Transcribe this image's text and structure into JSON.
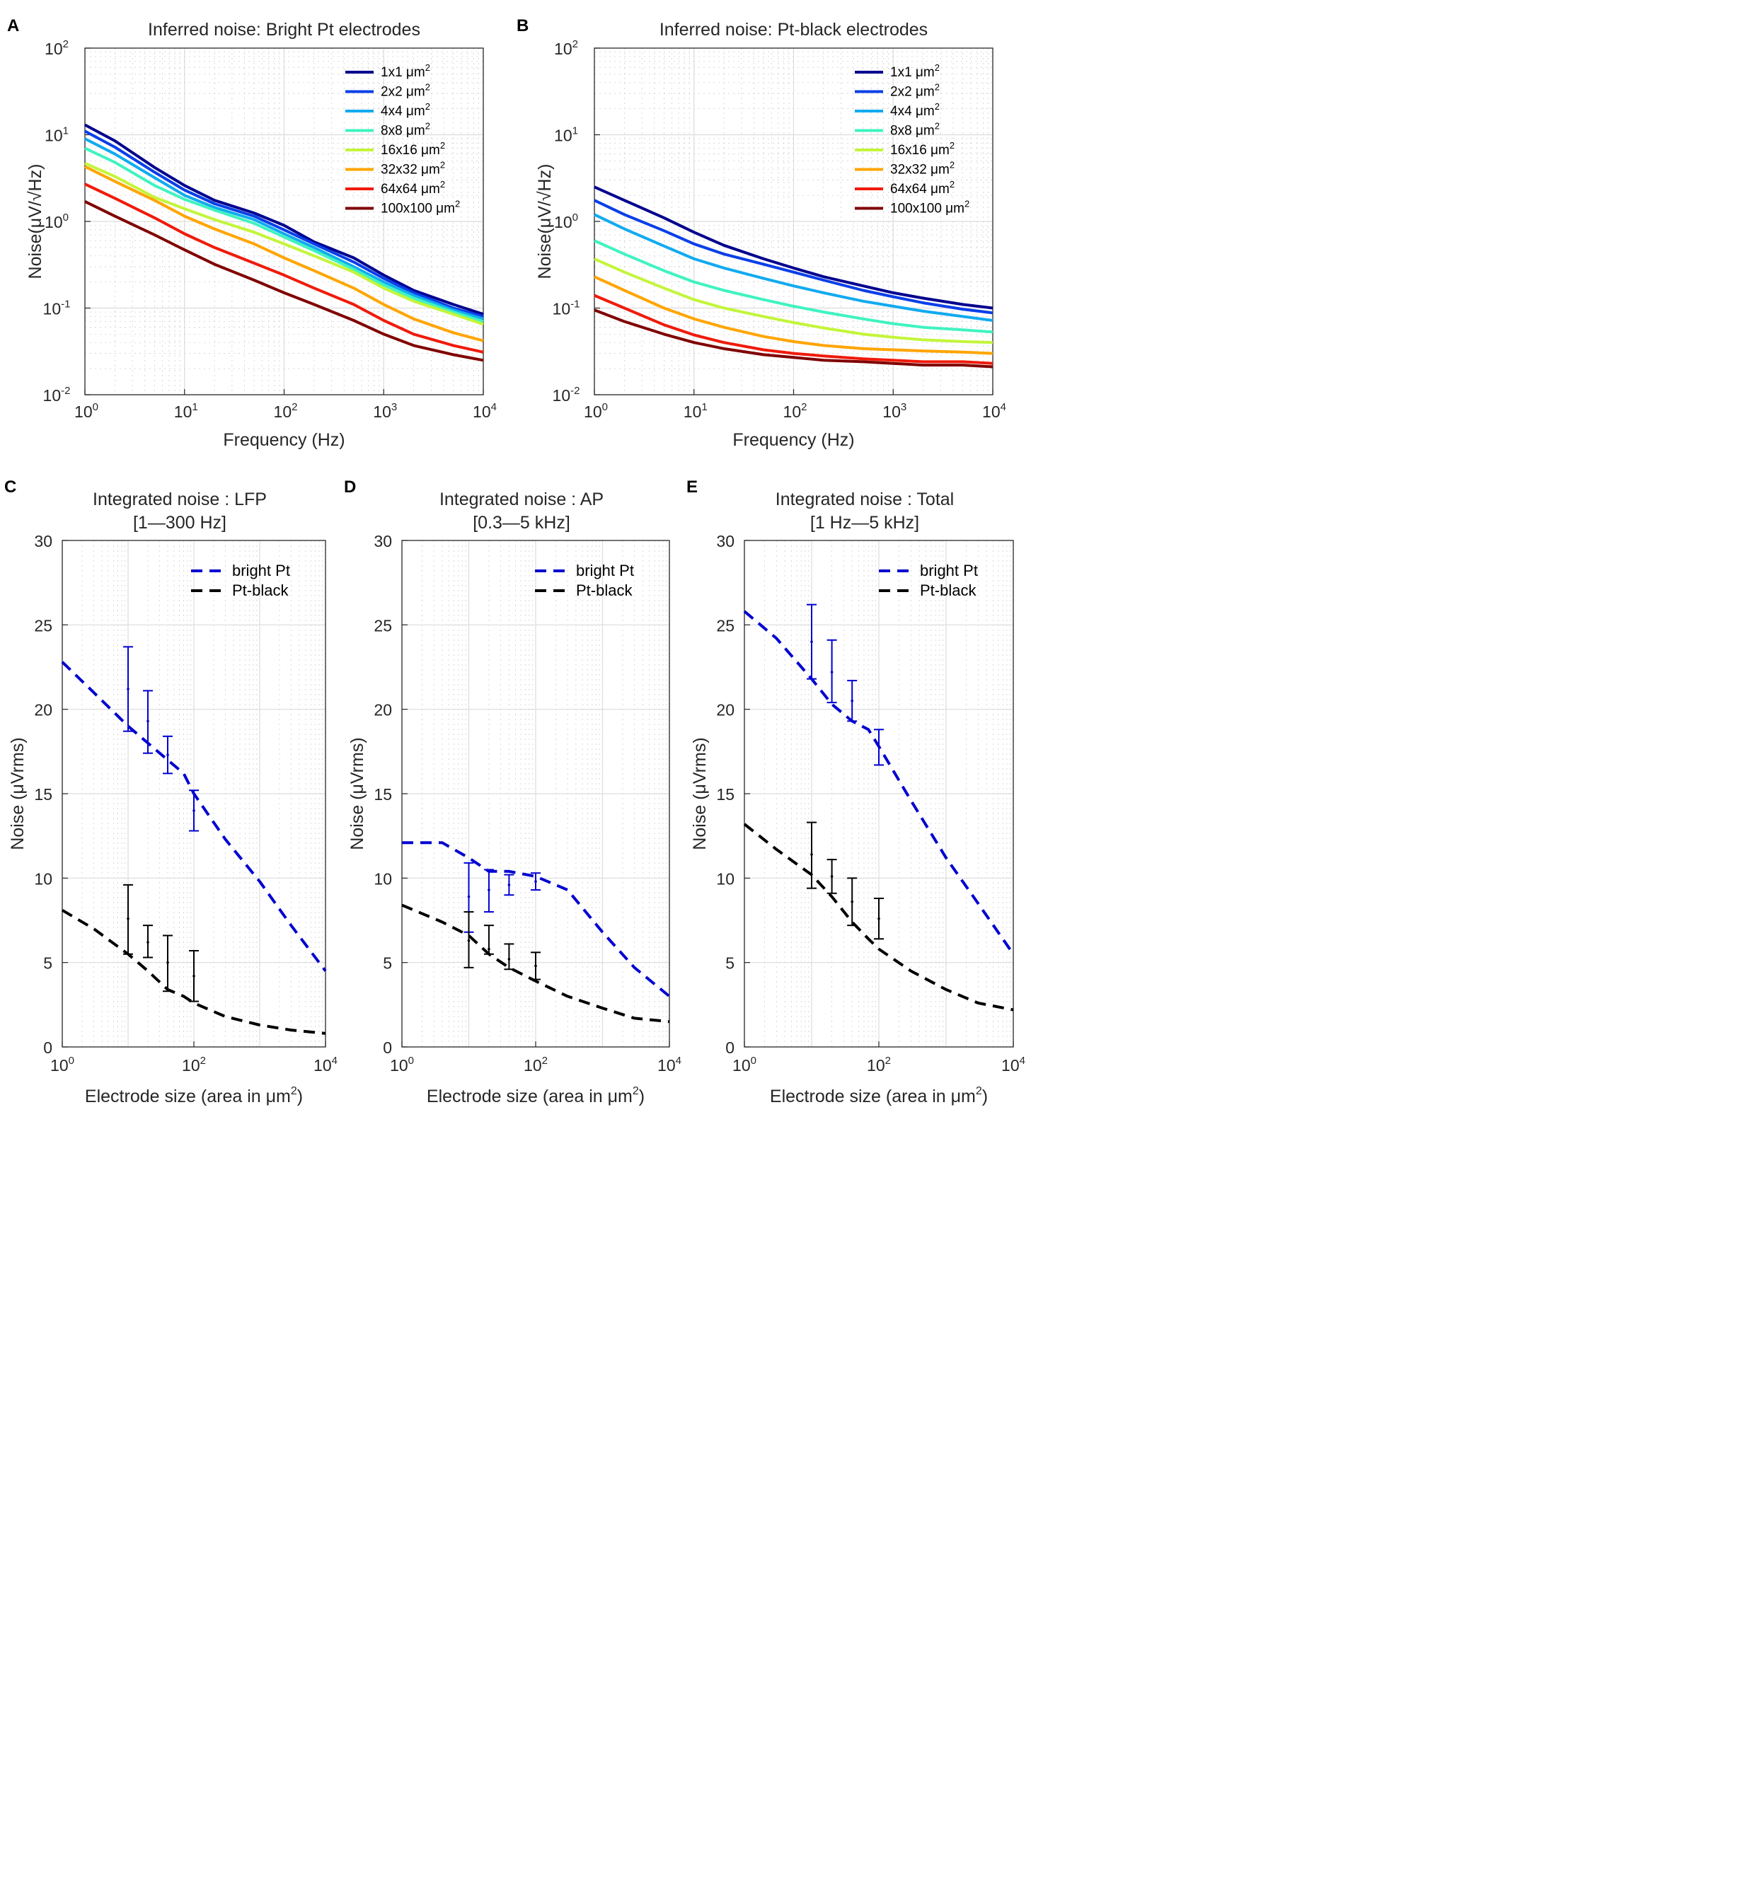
{
  "panels": {
    "A": {
      "letter": "A",
      "title": "Inferred noise: Bright Pt electrodes",
      "xlabel": "Frequency (Hz)",
      "ylabel": "Noise(μV/√Hz)",
      "xticks": [
        "10",
        "10",
        "10",
        "10",
        "10"
      ],
      "xtick_exps": [
        "0",
        "1",
        "2",
        "3",
        "4"
      ],
      "yticks": [
        "10",
        "10",
        "10",
        "10",
        "10"
      ],
      "ytick_exps": [
        "-2",
        "-1",
        "0",
        "1",
        "2"
      ]
    },
    "B": {
      "letter": "B",
      "title": "Inferred noise: Pt-black electrodes",
      "xlabel": "Frequency (Hz)",
      "ylabel": "Noise(μV/√Hz)",
      "xticks": [
        "10",
        "10",
        "10",
        "10",
        "10"
      ],
      "xtick_exps": [
        "0",
        "1",
        "2",
        "3",
        "4"
      ],
      "yticks": [
        "10",
        "10",
        "10",
        "10",
        "10"
      ],
      "ytick_exps": [
        "-2",
        "-1",
        "0",
        "1",
        "2"
      ]
    },
    "C": {
      "letter": "C",
      "title_line1": "Integrated noise : LFP",
      "title_line2": "[1—300 Hz]",
      "xlabel": "Electrode size (area in μm",
      "xlabel_sup": "2",
      "xlabel_end": ")",
      "ylabel": "Noise (μVrms)",
      "yticks": [
        "0",
        "5",
        "10",
        "15",
        "20",
        "25",
        "30"
      ],
      "xticks": [
        "10",
        "10",
        "10"
      ],
      "xtick_exps": [
        "0",
        "2",
        "4"
      ]
    },
    "D": {
      "letter": "D",
      "title_line1": "Integrated noise : AP",
      "title_line2": "[0.3—5 kHz]",
      "xlabel": "Electrode size (area in μm",
      "xlabel_sup": "2",
      "xlabel_end": ")",
      "ylabel": "Noise (μVrms)",
      "yticks": [
        "0",
        "5",
        "10",
        "15",
        "20",
        "25",
        "30"
      ],
      "xticks": [
        "10",
        "10",
        "10"
      ],
      "xtick_exps": [
        "0",
        "2",
        "4"
      ]
    },
    "E": {
      "letter": "E",
      "title_line1": "Integrated noise : Total",
      "title_line2": "[1 Hz—5 kHz]",
      "xlabel": "Electrode size (area in μm",
      "xlabel_sup": "2",
      "xlabel_end": ")",
      "ylabel": "Noise (μVrms)",
      "yticks": [
        "0",
        "5",
        "10",
        "15",
        "20",
        "25",
        "30"
      ],
      "xticks": [
        "10",
        "10",
        "10"
      ],
      "xtick_exps": [
        "0",
        "2",
        "4"
      ]
    }
  },
  "unit_um": "μm",
  "unit_sup": "2",
  "legend_sizes": [
    "1x1",
    "2x2",
    "4x4",
    "8x8",
    "16x16",
    "32x32",
    "64x64",
    "100x100"
  ],
  "size_colors": [
    "#00008f",
    "#0a3fe8",
    "#11aaf0",
    "#3ff3c0",
    "#c3f53a",
    "#ffa500",
    "#f01a0a",
    "#800000"
  ],
  "integ_legend": [
    "bright Pt",
    "Pt-black"
  ],
  "integ_colors": {
    "bright": "#0000d0",
    "black": "#000000"
  },
  "chart_data": [
    {
      "id": "A",
      "type": "line",
      "title": "Inferred noise: Bright Pt electrodes",
      "xlabel": "Frequency (Hz)",
      "ylabel": "Noise(μV/√Hz)",
      "xscale": "log",
      "yscale": "log",
      "xlim": [
        1,
        10000
      ],
      "ylim": [
        0.01,
        100
      ],
      "grid": true,
      "legend_position": "top-right",
      "x": [
        1,
        2,
        5,
        10,
        20,
        50,
        100,
        200,
        500,
        1000,
        2000,
        5000,
        10000
      ],
      "series": [
        {
          "name": "1x1 μm2",
          "values": [
            13,
            8.5,
            4.2,
            2.6,
            1.75,
            1.25,
            0.9,
            0.58,
            0.38,
            0.24,
            0.16,
            0.11,
            0.085
          ]
        },
        {
          "name": "2x2 μm2",
          "values": [
            11,
            7.2,
            3.7,
            2.3,
            1.6,
            1.15,
            0.8,
            0.55,
            0.34,
            0.22,
            0.15,
            0.1,
            0.08
          ]
        },
        {
          "name": "4x4 μm2",
          "values": [
            9,
            6.0,
            3.2,
            2.0,
            1.45,
            1.05,
            0.72,
            0.5,
            0.3,
            0.2,
            0.14,
            0.095,
            0.075
          ]
        },
        {
          "name": "8x8 μm2",
          "values": [
            7,
            4.8,
            2.6,
            1.8,
            1.35,
            0.95,
            0.66,
            0.46,
            0.28,
            0.185,
            0.13,
            0.09,
            0.07
          ]
        },
        {
          "name": "16x16 μm2",
          "values": [
            4.7,
            3.3,
            1.9,
            1.4,
            1.05,
            0.75,
            0.55,
            0.4,
            0.26,
            0.17,
            0.12,
            0.085,
            0.065
          ]
        },
        {
          "name": "32x32 μm2",
          "values": [
            4.3,
            2.9,
            1.75,
            1.15,
            0.82,
            0.55,
            0.38,
            0.27,
            0.17,
            0.11,
            0.075,
            0.052,
            0.042
          ]
        },
        {
          "name": "64x64 μm2",
          "values": [
            2.7,
            1.85,
            1.1,
            0.72,
            0.5,
            0.33,
            0.24,
            0.17,
            0.11,
            0.072,
            0.05,
            0.037,
            0.031
          ]
        },
        {
          "name": "100x100 μm2",
          "values": [
            1.7,
            1.15,
            0.7,
            0.47,
            0.32,
            0.21,
            0.15,
            0.11,
            0.072,
            0.05,
            0.037,
            0.029,
            0.025
          ]
        }
      ]
    },
    {
      "id": "B",
      "type": "line",
      "title": "Inferred noise: Pt-black electrodes",
      "xlabel": "Frequency (Hz)",
      "ylabel": "Noise(μV/√Hz)",
      "xscale": "log",
      "yscale": "log",
      "xlim": [
        1,
        10000
      ],
      "ylim": [
        0.01,
        100
      ],
      "grid": true,
      "legend_position": "top-right",
      "x": [
        1,
        2,
        5,
        10,
        20,
        50,
        100,
        200,
        500,
        1000,
        2000,
        5000,
        10000
      ],
      "series": [
        {
          "name": "1x1 μm2",
          "values": [
            2.5,
            1.75,
            1.1,
            0.75,
            0.53,
            0.37,
            0.29,
            0.23,
            0.18,
            0.15,
            0.13,
            0.11,
            0.1
          ]
        },
        {
          "name": "2x2 μm2",
          "values": [
            1.75,
            1.2,
            0.78,
            0.55,
            0.42,
            0.32,
            0.26,
            0.21,
            0.16,
            0.135,
            0.115,
            0.097,
            0.088
          ]
        },
        {
          "name": "4x4 μm2",
          "values": [
            1.2,
            0.82,
            0.52,
            0.37,
            0.29,
            0.22,
            0.18,
            0.15,
            0.12,
            0.105,
            0.092,
            0.08,
            0.072
          ]
        },
        {
          "name": "8x8 μm2",
          "values": [
            0.6,
            0.42,
            0.27,
            0.2,
            0.16,
            0.125,
            0.105,
            0.09,
            0.075,
            0.066,
            0.06,
            0.056,
            0.053
          ]
        },
        {
          "name": "16x16 μm2",
          "values": [
            0.37,
            0.26,
            0.17,
            0.125,
            0.1,
            0.08,
            0.068,
            0.059,
            0.05,
            0.046,
            0.043,
            0.041,
            0.04
          ]
        },
        {
          "name": "32x32 μm2",
          "values": [
            0.23,
            0.16,
            0.1,
            0.075,
            0.06,
            0.047,
            0.041,
            0.037,
            0.034,
            0.033,
            0.032,
            0.031,
            0.03
          ]
        },
        {
          "name": "64x64 μm2",
          "values": [
            0.14,
            0.1,
            0.064,
            0.049,
            0.04,
            0.033,
            0.03,
            0.028,
            0.026,
            0.025,
            0.024,
            0.024,
            0.023
          ]
        },
        {
          "name": "100x100 μm2",
          "values": [
            0.095,
            0.07,
            0.05,
            0.04,
            0.034,
            0.029,
            0.027,
            0.025,
            0.024,
            0.023,
            0.022,
            0.022,
            0.021
          ]
        }
      ]
    },
    {
      "id": "C",
      "type": "line",
      "title": "Integrated noise : LFP [1—300 Hz]",
      "xlabel": "Electrode size (area in μm2)",
      "ylabel": "Noise (μVrms)",
      "xscale": "log",
      "xlim": [
        1,
        10000
      ],
      "ylim": [
        0,
        30
      ],
      "grid": true,
      "legend_position": "top-right",
      "series": [
        {
          "name": "bright Pt",
          "style": "dashed",
          "x": [
            1,
            3,
            10,
            20,
            40,
            70,
            100,
            300,
            1000,
            3000,
            10000
          ],
          "values": [
            22.8,
            21,
            19,
            18,
            17,
            16.2,
            15,
            12.3,
            9.8,
            7.2,
            4.5
          ]
        },
        {
          "name": "Pt-black",
          "style": "dashed",
          "x": [
            1,
            3,
            10,
            20,
            40,
            70,
            100,
            300,
            1000,
            3000,
            10000
          ],
          "values": [
            8.1,
            7,
            5.5,
            4.5,
            3.4,
            3.0,
            2.6,
            1.8,
            1.3,
            1.0,
            0.8
          ]
        }
      ],
      "errorbars": [
        {
          "series": "bright Pt",
          "x": [
            10,
            20,
            40,
            100
          ],
          "mean": [
            21.2,
            19.3,
            17.3,
            14
          ],
          "low": [
            18.7,
            17.4,
            16.2,
            12.8
          ],
          "high": [
            23.7,
            21.1,
            18.4,
            15.2
          ]
        },
        {
          "series": "Pt-black",
          "x": [
            10,
            20,
            40,
            100
          ],
          "mean": [
            7.6,
            6.2,
            5,
            4.2
          ],
          "low": [
            5.5,
            5.3,
            3.3,
            2.7
          ],
          "high": [
            9.6,
            7.2,
            6.6,
            5.7
          ]
        }
      ]
    },
    {
      "id": "D",
      "type": "line",
      "title": "Integrated noise : AP [0.3—5 kHz]",
      "xlabel": "Electrode size (area in μm2)",
      "ylabel": "Noise (μVrms)",
      "xscale": "log",
      "xlim": [
        1,
        10000
      ],
      "ylim": [
        0,
        30
      ],
      "grid": true,
      "legend_position": "top-right",
      "series": [
        {
          "name": "bright Pt",
          "style": "dashed",
          "x": [
            1,
            4,
            10,
            20,
            40,
            100,
            300,
            1000,
            3000,
            10000
          ],
          "values": [
            12.1,
            12.1,
            11.2,
            10.4,
            10.4,
            10.1,
            9.3,
            6.8,
            4.7,
            3.0
          ]
        },
        {
          "name": "Pt-black",
          "style": "dashed",
          "x": [
            1,
            4,
            10,
            20,
            40,
            100,
            300,
            1000,
            3000,
            10000
          ],
          "values": [
            8.4,
            7.4,
            6.6,
            5.5,
            4.7,
            3.9,
            3.0,
            2.3,
            1.7,
            1.5
          ]
        }
      ],
      "errorbars": [
        {
          "series": "bright Pt",
          "x": [
            10,
            20,
            40,
            100
          ],
          "mean": [
            8.9,
            9.3,
            9.6,
            9.8
          ],
          "low": [
            6.8,
            8.0,
            9.0,
            9.3
          ],
          "high": [
            10.9,
            10.5,
            10.2,
            10.3
          ]
        },
        {
          "series": "Pt-black",
          "x": [
            10,
            20,
            40,
            100
          ],
          "mean": [
            6.3,
            5.8,
            5.2,
            4.8
          ],
          "low": [
            4.7,
            5.5,
            4.6,
            4.0
          ],
          "high": [
            8.0,
            7.2,
            6.1,
            5.6
          ]
        }
      ]
    },
    {
      "id": "E",
      "type": "line",
      "title": "Integrated noise : Total [1 Hz—5 kHz]",
      "xlabel": "Electrode size (area in μm2)",
      "ylabel": "Noise (μVrms)",
      "xscale": "log",
      "xlim": [
        1,
        10000
      ],
      "ylim": [
        0,
        30
      ],
      "grid": true,
      "legend_position": "top-right",
      "series": [
        {
          "name": "bright Pt",
          "style": "dashed",
          "x": [
            1,
            3,
            10,
            20,
            40,
            70,
            100,
            300,
            1000,
            3000,
            10000
          ],
          "values": [
            25.8,
            24.2,
            21.8,
            20.3,
            19.3,
            18.8,
            17.8,
            14.6,
            11.2,
            8.5,
            5.5
          ]
        },
        {
          "name": "Pt-black",
          "style": "dashed",
          "x": [
            1,
            3,
            10,
            20,
            40,
            70,
            100,
            300,
            1000,
            3000,
            10000
          ],
          "values": [
            13.2,
            11.7,
            10.2,
            8.9,
            7.4,
            6.4,
            5.8,
            4.5,
            3.4,
            2.6,
            2.2
          ]
        }
      ],
      "errorbars": [
        {
          "series": "bright Pt",
          "x": [
            10,
            20,
            40,
            100
          ],
          "mean": [
            24.0,
            22.2,
            20.5,
            17.8
          ],
          "low": [
            21.8,
            20.4,
            19.3,
            16.7
          ],
          "high": [
            26.2,
            24.1,
            21.7,
            18.8
          ]
        },
        {
          "series": "Pt-black",
          "x": [
            10,
            20,
            40,
            100
          ],
          "mean": [
            11.4,
            10.1,
            8.6,
            7.6
          ],
          "low": [
            9.4,
            9.1,
            7.2,
            6.4
          ],
          "high": [
            13.3,
            11.1,
            10.0,
            8.8
          ]
        }
      ]
    }
  ]
}
